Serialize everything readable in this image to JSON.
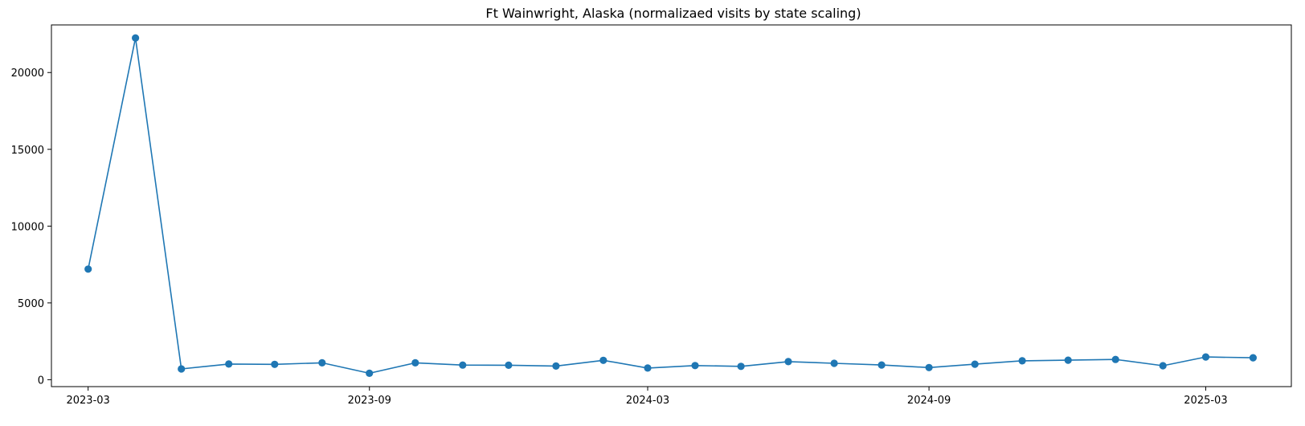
{
  "chart_data": {
    "type": "line",
    "title": "Ft Wainwright, Alaska (normalizaed visits by state scaling)",
    "xlabel": "",
    "ylabel": "",
    "x_ticks": [
      "2023-03",
      "2023-09",
      "2024-03",
      "2024-09",
      "2025-03"
    ],
    "y_ticks": [
      0,
      5000,
      10000,
      15000,
      20000
    ],
    "y_tick_labels": [
      "0",
      "5000",
      "10000",
      "15000",
      "20000"
    ],
    "ylim": [
      -450,
      23100
    ],
    "xlim": [
      "2023-02-05",
      "2025-04-26"
    ],
    "grid": false,
    "marker": "circle",
    "series": [
      {
        "color": "#1f77b4",
        "x": [
          "2023-03-01",
          "2023-04-01",
          "2023-05-01",
          "2023-06-01",
          "2023-07-01",
          "2023-08-01",
          "2023-09-01",
          "2023-10-01",
          "2023-11-01",
          "2023-12-01",
          "2024-01-01",
          "2024-02-01",
          "2024-03-01",
          "2024-04-01",
          "2024-05-01",
          "2024-06-01",
          "2024-07-01",
          "2024-08-01",
          "2024-09-01",
          "2024-10-01",
          "2024-11-01",
          "2024-12-01",
          "2025-01-01",
          "2025-02-01",
          "2025-03-01",
          "2025-04-01"
        ],
        "values": [
          7200,
          22250,
          700,
          1020,
          1000,
          1100,
          420,
          1100,
          950,
          940,
          890,
          1260,
          760,
          920,
          870,
          1180,
          1070,
          960,
          790,
          1010,
          1230,
          1270,
          1320,
          910,
          1480,
          1430
        ]
      }
    ]
  }
}
